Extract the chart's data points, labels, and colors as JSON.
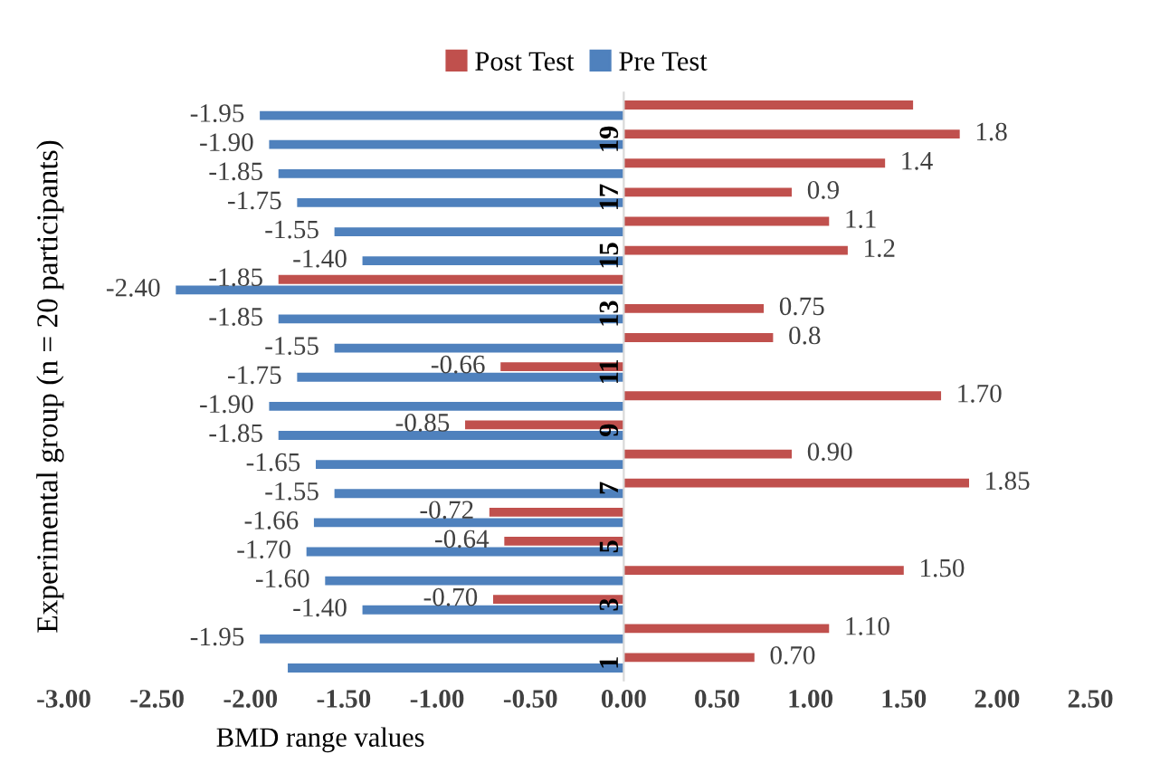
{
  "chart_data": {
    "type": "bar",
    "orientation": "horizontal",
    "ylabel": "Experimental group (n = 20 participants)",
    "xlabel": "BMD range values",
    "categories": [
      null,
      "19",
      null,
      "17",
      null,
      "15",
      null,
      "13",
      null,
      "11",
      null,
      "9",
      null,
      "7",
      null,
      "5",
      null,
      "3",
      null,
      "1"
    ],
    "series": [
      {
        "name": "Post Test",
        "color": "#c0504d",
        "values": [
          1.55,
          1.8,
          1.4,
          0.9,
          1.1,
          1.2,
          -1.85,
          0.75,
          0.8,
          -0.66,
          1.7,
          -0.85,
          0.9,
          1.85,
          -0.72,
          -0.64,
          1.5,
          -0.7,
          1.1,
          0.7
        ],
        "value_labels": [
          null,
          "1.8",
          "1.4",
          "0.9",
          "1.1",
          "1.2",
          "-1.85",
          "0.75",
          "0.8",
          "-0.66",
          "1.70",
          "-0.85",
          "0.90",
          "1.85",
          "-0.72",
          "-0.64",
          "1.50",
          "-0.70",
          "1.10",
          "0.70"
        ]
      },
      {
        "name": "Pre Test",
        "color": "#4f81bd",
        "values": [
          -1.95,
          -1.9,
          -1.85,
          -1.75,
          -1.55,
          -1.4,
          -2.4,
          -1.85,
          -1.55,
          -1.75,
          -1.9,
          -1.85,
          -1.65,
          -1.55,
          -1.66,
          -1.7,
          -1.6,
          -1.4,
          -1.95,
          -1.8
        ],
        "value_labels": [
          "-1.95",
          "-1.90",
          "-1.85",
          "-1.75",
          "-1.55",
          "-1.40",
          "-2.40",
          "-1.85",
          "-1.55",
          "-1.75",
          "-1.90",
          "-1.85",
          "-1.65",
          "-1.55",
          "-1.66",
          "-1.70",
          "-1.60",
          "-1.40",
          "-1.95",
          null
        ]
      }
    ],
    "xlim": [
      -3,
      2.5
    ],
    "xticks": [
      {
        "value": -3,
        "label": "-3.00"
      },
      {
        "value": -2.5,
        "label": "-2.50"
      },
      {
        "value": -2,
        "label": "-2.00"
      },
      {
        "value": -1.5,
        "label": "-1.50"
      },
      {
        "value": -1,
        "label": "-1.00"
      },
      {
        "value": -0.5,
        "label": "-0.50"
      },
      {
        "value": 0,
        "label": "0.00"
      },
      {
        "value": 0.5,
        "label": "0.50"
      },
      {
        "value": 1,
        "label": "1.00"
      },
      {
        "value": 1.5,
        "label": "1.50"
      },
      {
        "value": 2,
        "label": "2.00"
      },
      {
        "value": 2.5,
        "label": "2.50"
      }
    ],
    "grid": false,
    "legend": "top"
  }
}
